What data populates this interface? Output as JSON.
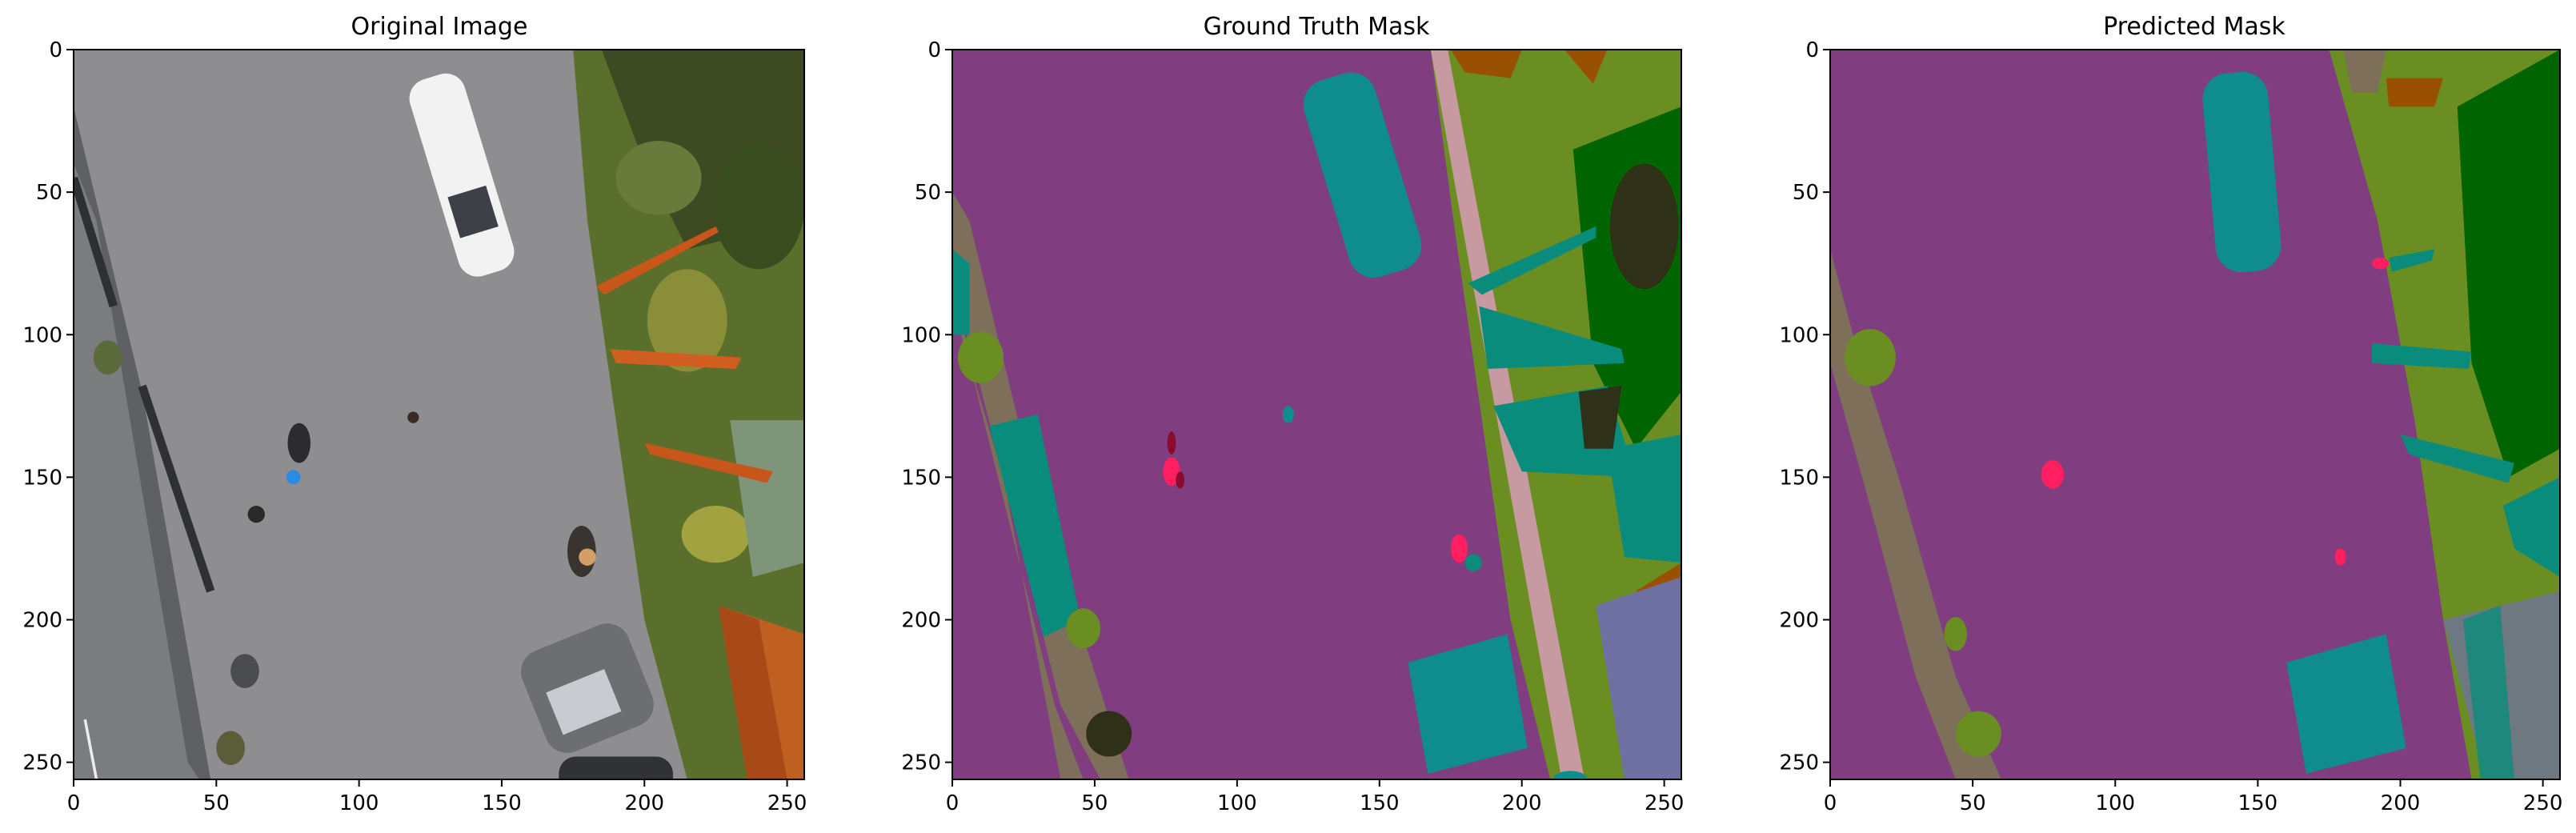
{
  "figure": {
    "panels": [
      {
        "title": "Original Image"
      },
      {
        "title": "Ground Truth Mask"
      },
      {
        "title": "Predicted Mask"
      }
    ],
    "axis": {
      "x_ticks": [
        "0",
        "50",
        "100",
        "150",
        "200",
        "250"
      ],
      "y_ticks": [
        "0",
        "50",
        "100",
        "150",
        "200",
        "250"
      ],
      "x_range": [
        0,
        256
      ],
      "y_range": [
        0,
        256
      ]
    }
  },
  "colors": {
    "paved": "#803d7f",
    "vegetation": "#6b8e23",
    "tree": "#006400",
    "car": "#0f8c8e",
    "person": "#ff1f60",
    "bicycle": "#8b0a2e",
    "dirt": "#7d6f5a",
    "pole": "#c69aa0",
    "roof": "#6e70a2",
    "obstacle": "#2e3018",
    "fence": "#9a5003",
    "water": "#0a8c7c",
    "asphalt_photo": "#8e8e90",
    "grass_photo": "#596f2b",
    "dark_photo": "#2e3520"
  }
}
